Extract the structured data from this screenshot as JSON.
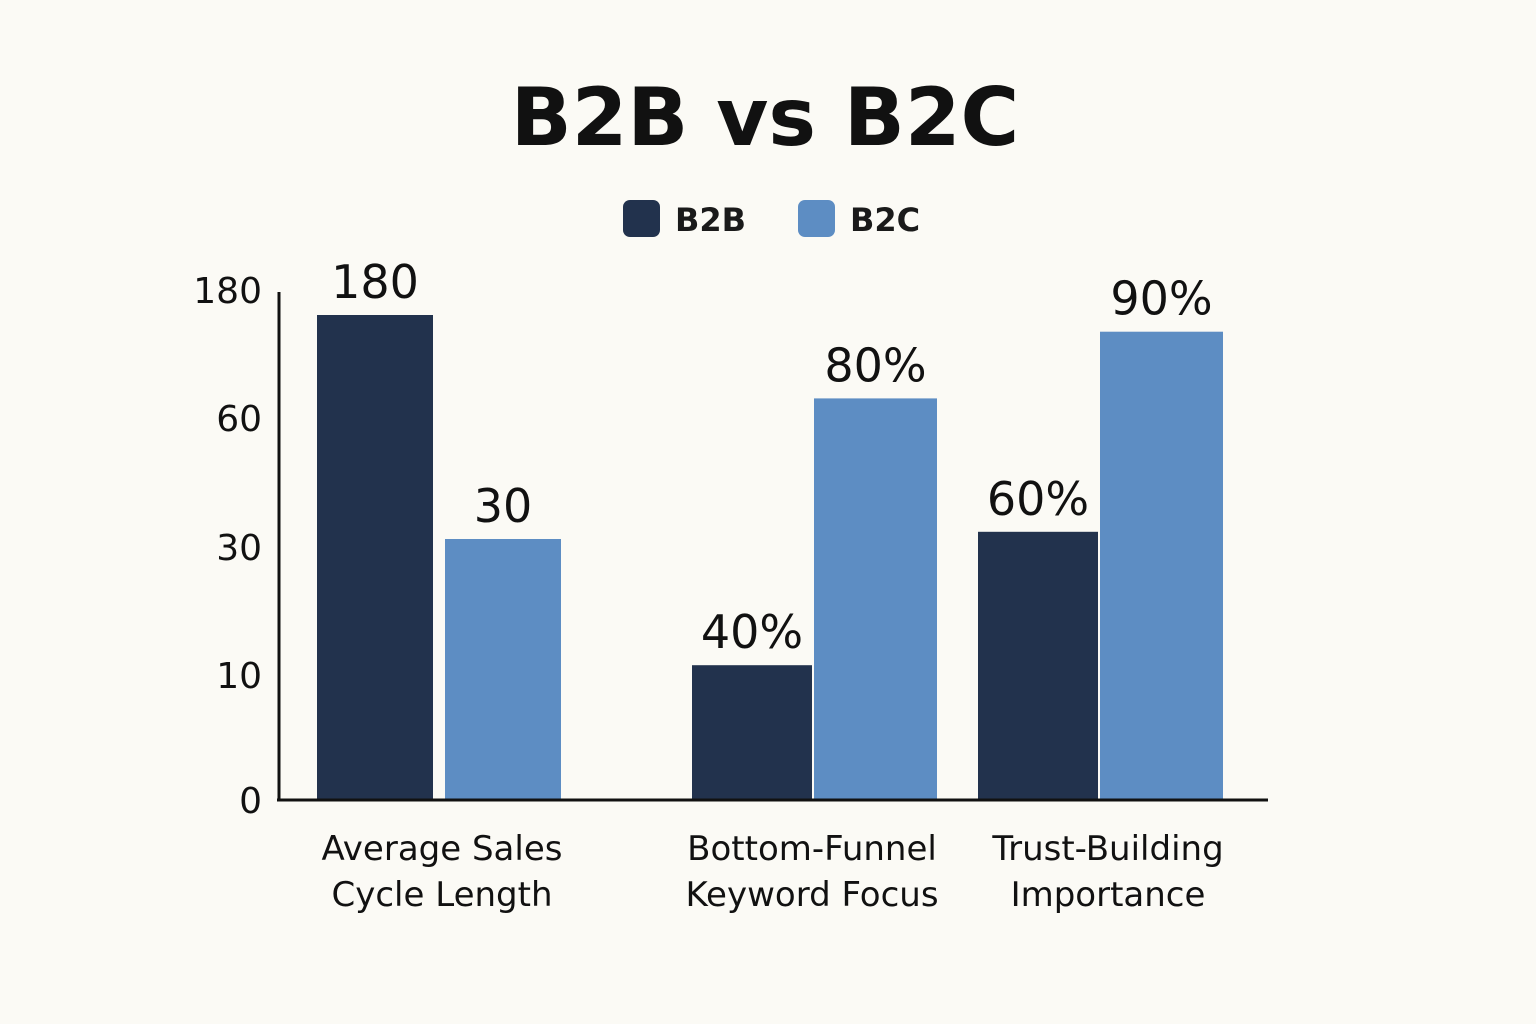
{
  "chart_data": {
    "type": "bar",
    "title": "B2B vs B2C",
    "categories": [
      [
        "Average Sales",
        "Cycle Length"
      ],
      [
        "Bottom-Funnel",
        "Keyword Focus"
      ],
      [
        "Trust-Building",
        "Importance"
      ]
    ],
    "series": [
      {
        "name": "B2B",
        "color": "#22324d",
        "values": [
          180,
          40,
          60
        ],
        "labels": [
          "180",
          "40%",
          "60%"
        ]
      },
      {
        "name": "B2C",
        "color": "#5d8dc3",
        "values": [
          30,
          80,
          90
        ],
        "labels": [
          "30",
          "80%",
          "90%"
        ]
      }
    ],
    "y_ticks": [
      0,
      10,
      30,
      60,
      180
    ],
    "axis_scale": "nonlinear",
    "xlabel": "",
    "ylabel": "",
    "grid": false,
    "legend": {
      "position": "top-center"
    }
  }
}
